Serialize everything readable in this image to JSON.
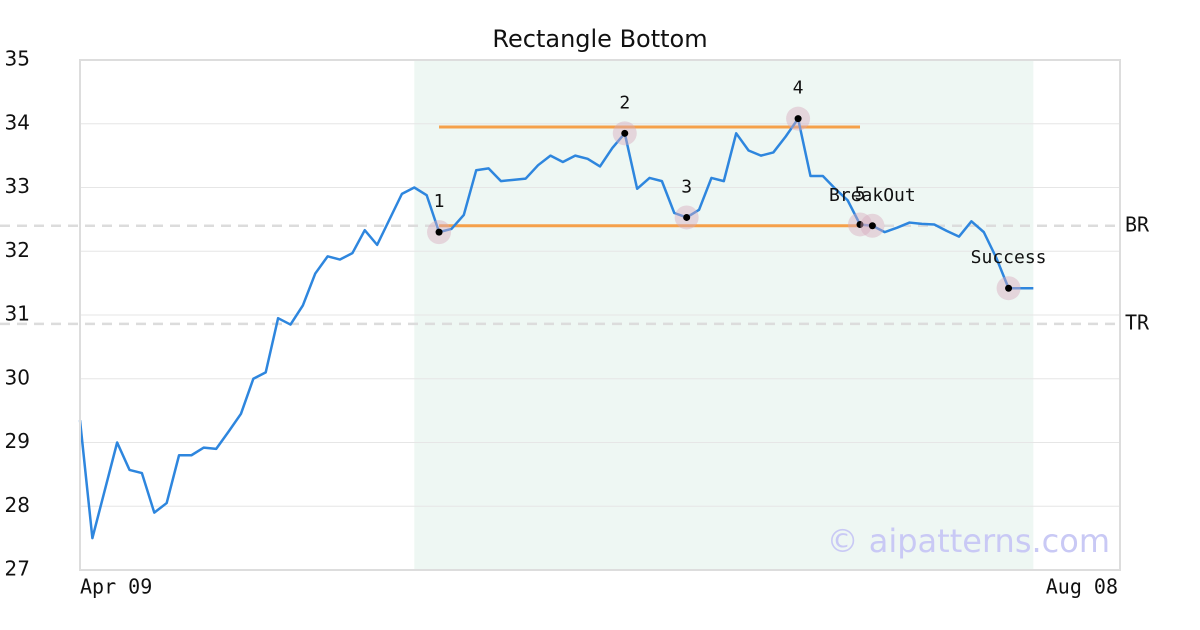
{
  "chart_data": {
    "type": "line",
    "title": "Rectangle Bottom",
    "x": [
      0,
      1,
      2,
      3,
      4,
      5,
      6,
      7,
      8,
      9,
      10,
      11,
      12,
      13,
      14,
      15,
      16,
      17,
      18,
      19,
      20,
      21,
      22,
      23,
      24,
      25,
      26,
      27,
      28,
      29,
      30,
      31,
      32,
      33,
      34,
      35,
      36,
      37,
      38,
      39,
      40,
      41,
      42,
      43,
      44,
      45,
      46,
      47,
      48,
      49,
      50,
      51,
      52,
      53,
      54,
      55,
      56,
      57,
      58,
      59,
      60,
      61,
      62,
      63,
      64,
      65,
      66,
      67,
      68,
      69,
      70,
      71,
      72,
      73,
      74,
      75,
      76,
      77
    ],
    "series": [
      {
        "color": "#2e86de",
        "values": [
          29.35,
          27.5,
          28.25,
          29.0,
          28.57,
          28.52,
          27.9,
          28.05,
          28.8,
          28.8,
          28.92,
          28.9,
          29.17,
          29.45,
          30.0,
          30.1,
          30.95,
          30.85,
          31.15,
          31.65,
          31.92,
          31.87,
          31.97,
          32.33,
          32.1,
          32.5,
          32.9,
          33.0,
          32.88,
          32.3,
          32.35,
          32.57,
          33.27,
          33.3,
          33.1,
          33.12,
          33.14,
          33.35,
          33.5,
          33.4,
          33.5,
          33.45,
          33.33,
          33.62,
          33.85,
          32.98,
          33.15,
          33.1,
          32.6,
          32.53,
          32.65,
          33.15,
          33.1,
          33.85,
          33.58,
          33.5,
          33.55,
          33.8,
          34.08,
          33.18,
          33.18,
          32.98,
          32.8,
          32.42,
          32.4,
          32.3,
          32.37,
          32.45,
          32.43,
          32.42,
          32.32,
          32.23,
          32.47,
          32.3,
          31.9,
          31.42,
          31.42,
          31.42
        ]
      }
    ],
    "xlim": [
      0,
      84
    ],
    "ylim": [
      27,
      35
    ],
    "xticks": [
      {
        "value": 0,
        "label": "Apr 09"
      },
      {
        "value": 84,
        "label": "Aug 08"
      }
    ],
    "yticks": [
      27,
      28,
      29,
      30,
      31,
      32,
      33,
      34,
      35
    ],
    "grid": true,
    "shaded_range": {
      "x": [
        27,
        77
      ],
      "color": "#eef7f3"
    },
    "trend_lines": [
      {
        "x": [
          29,
          63
        ],
        "y": 33.95,
        "color": "#f5a04a"
      },
      {
        "x": [
          29,
          63
        ],
        "y": 32.4,
        "color": "#f5a04a"
      }
    ],
    "reference_lines": [
      {
        "label": "BR",
        "value": 32.4
      },
      {
        "label": "TR",
        "value": 30.86
      }
    ],
    "markers": [
      {
        "label": "1",
        "x": 29,
        "y": 32.3
      },
      {
        "label": "2",
        "x": 44,
        "y": 33.85
      },
      {
        "label": "3",
        "x": 49,
        "y": 32.53
      },
      {
        "label": "4",
        "x": 58,
        "y": 34.08
      },
      {
        "label": "5",
        "x": 63,
        "y": 32.42
      },
      {
        "label": "BreakOut",
        "x": 64,
        "y": 32.4
      },
      {
        "label": "Success",
        "x": 75,
        "y": 31.42
      }
    ],
    "watermark": "© aipatterns.com"
  }
}
